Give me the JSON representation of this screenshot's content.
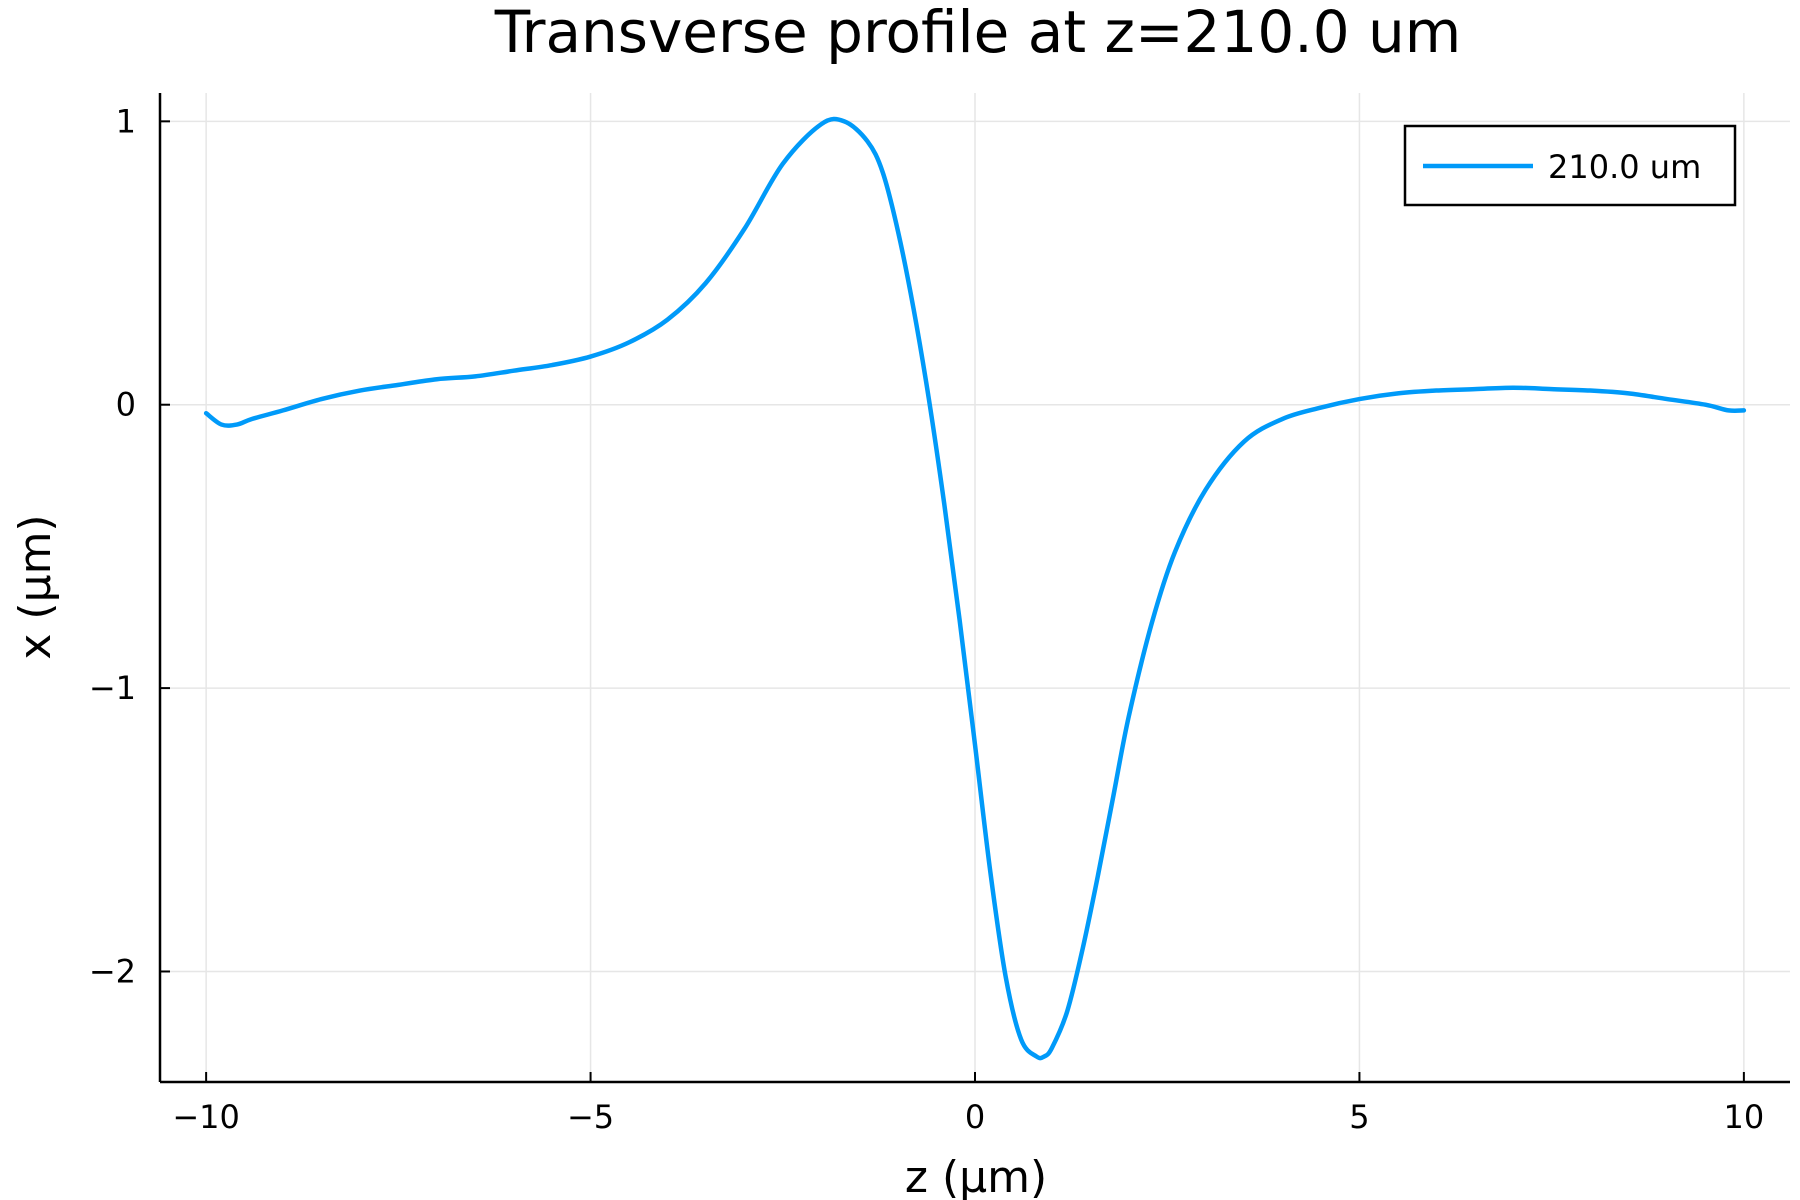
{
  "chart_data": {
    "type": "line",
    "title": "Transverse profile at z=210.0 um",
    "xlabel": "z (μm)",
    "ylabel": "x (μm)",
    "xlim": [
      -10.6,
      10.6
    ],
    "ylim": [
      -2.39,
      1.1
    ],
    "xticks": [
      -10,
      -5,
      0,
      5,
      10
    ],
    "xtick_labels": [
      "−10",
      "−5",
      "0",
      "5",
      "10"
    ],
    "yticks": [
      -2,
      -1,
      0,
      1
    ],
    "ytick_labels": [
      "−2",
      "−1",
      "0",
      "1"
    ],
    "grid": true,
    "legend_position": "top-right",
    "series": [
      {
        "name": "210.0 um",
        "color": "#009af9",
        "x": [
          -10,
          -9.8,
          -9.6,
          -9.4,
          -9.0,
          -8.5,
          -8.0,
          -7.5,
          -7.0,
          -6.5,
          -6.0,
          -5.5,
          -5.0,
          -4.5,
          -4.0,
          -3.5,
          -3.0,
          -2.5,
          -2.0,
          -1.7,
          -1.4,
          -1.2,
          -1.0,
          -0.8,
          -0.6,
          -0.4,
          -0.2,
          0.0,
          0.2,
          0.4,
          0.6,
          0.8,
          0.9,
          1.0,
          1.2,
          1.4,
          1.6,
          1.8,
          2.0,
          2.3,
          2.6,
          3.0,
          3.5,
          4.0,
          4.5,
          5.0,
          5.5,
          6.0,
          6.5,
          7.0,
          7.5,
          8.0,
          8.5,
          9.0,
          9.5,
          9.8,
          10.0
        ],
        "y": [
          -0.03,
          -0.07,
          -0.07,
          -0.05,
          -0.02,
          0.02,
          0.05,
          0.07,
          0.09,
          0.1,
          0.12,
          0.14,
          0.17,
          0.22,
          0.3,
          0.43,
          0.62,
          0.85,
          0.99,
          1.0,
          0.93,
          0.82,
          0.61,
          0.34,
          0.02,
          -0.35,
          -0.76,
          -1.2,
          -1.65,
          -2.02,
          -2.24,
          -2.3,
          -2.3,
          -2.27,
          -2.14,
          -1.92,
          -1.66,
          -1.38,
          -1.1,
          -0.77,
          -0.52,
          -0.3,
          -0.13,
          -0.05,
          -0.01,
          0.02,
          0.04,
          0.05,
          0.055,
          0.06,
          0.055,
          0.05,
          0.04,
          0.02,
          0.0,
          -0.02,
          -0.02
        ]
      }
    ]
  }
}
